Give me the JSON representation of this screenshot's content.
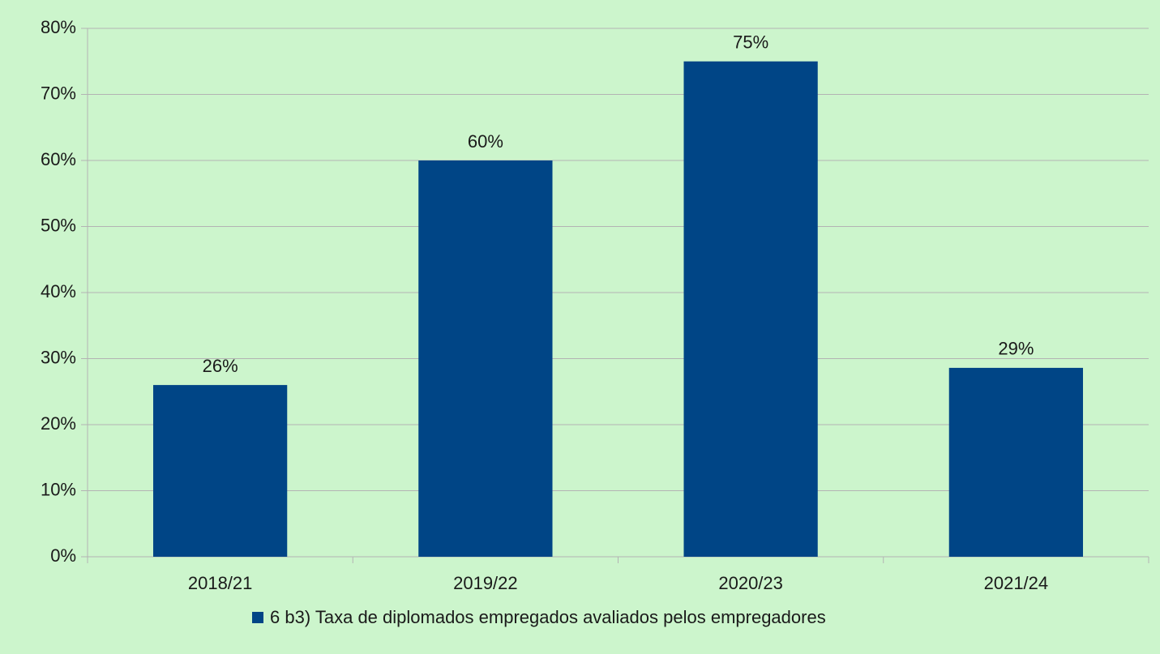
{
  "chart_data": {
    "type": "bar",
    "categories": [
      "2018/21",
      "2019/22",
      "2020/23",
      "2021/24"
    ],
    "series": [
      {
        "name": "6 b3) Taxa de diplomados empregados avaliados pelos empregadores",
        "color": "#004586",
        "values": [
          26,
          60,
          75,
          28.6
        ],
        "value_labels": [
          "26%",
          "60%",
          "75%",
          "29%"
        ]
      }
    ],
    "ylim": [
      0,
      80
    ],
    "yticks": [
      {
        "value": 0,
        "label": "0%"
      },
      {
        "value": 10,
        "label": "10%"
      },
      {
        "value": 20,
        "label": "20%"
      },
      {
        "value": 30,
        "label": "30%"
      },
      {
        "value": 40,
        "label": "40%"
      },
      {
        "value": 50,
        "label": "50%"
      },
      {
        "value": 60,
        "label": "60%"
      },
      {
        "value": 70,
        "label": "70%"
      },
      {
        "value": 80,
        "label": "80%"
      }
    ],
    "grid": true,
    "legend": "bottom"
  }
}
